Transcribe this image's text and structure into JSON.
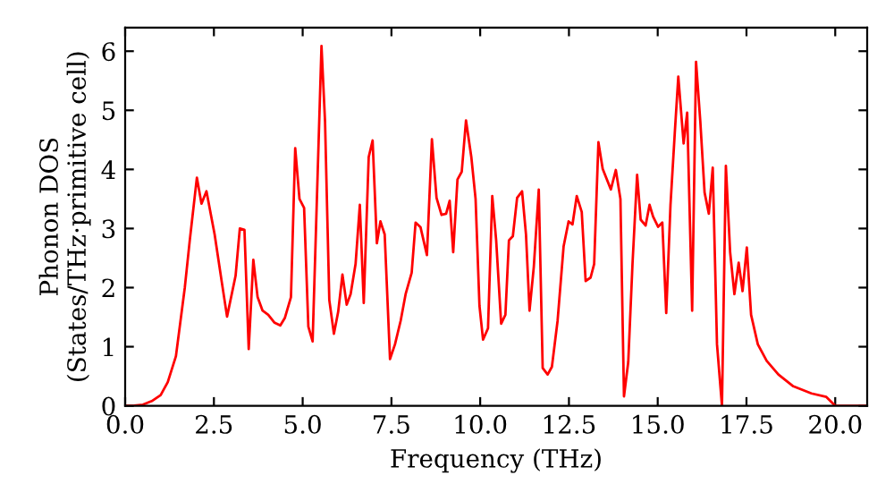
{
  "chart_data": {
    "type": "line",
    "xlabel": "Frequency (THz)",
    "ylabel": "Phonon DOS\n(States/THz·primitive cell)",
    "xlim": [
      0,
      20.9
    ],
    "ylim": [
      0,
      6.4
    ],
    "xticks": [
      {
        "value": 0,
        "label": "0.0"
      },
      2.5,
      {
        "value": 5,
        "label": "5.0"
      },
      7.5,
      {
        "value": 10,
        "label": "10.0"
      },
      12.5,
      {
        "value": 15,
        "label": "15.0"
      },
      17.5,
      {
        "value": 20,
        "label": "20.0"
      }
    ],
    "yticks": [
      0,
      1,
      2,
      3,
      4,
      5,
      6
    ],
    "grid": false,
    "marker": "none",
    "line_style": "solid",
    "series": [
      {
        "color": "#ff0000",
        "x": [
          0,
          0.25,
          0.5,
          0.75,
          1.0,
          1.2,
          1.43,
          1.68,
          1.82,
          2.02,
          2.15,
          2.29,
          2.52,
          2.72,
          2.87,
          3.11,
          3.23,
          3.36,
          3.48,
          3.61,
          3.73,
          3.87,
          4.03,
          4.2,
          4.37,
          4.5,
          4.67,
          4.79,
          4.91,
          5.04,
          5.16,
          5.28,
          5.53,
          5.63,
          5.75,
          5.88,
          6.0,
          6.12,
          6.24,
          6.35,
          6.49,
          6.61,
          6.72,
          6.86,
          6.97,
          7.09,
          7.19,
          7.31,
          7.46,
          7.6,
          7.76,
          7.9,
          8.07,
          8.18,
          8.32,
          8.5,
          8.64,
          8.77,
          8.91,
          9.04,
          9.14,
          9.24,
          9.36,
          9.48,
          9.6,
          9.75,
          9.87,
          9.98,
          10.08,
          10.22,
          10.34,
          10.45,
          10.59,
          10.71,
          10.81,
          10.92,
          11.04,
          11.18,
          11.29,
          11.39,
          11.51,
          11.65,
          11.76,
          11.9,
          12.02,
          12.18,
          12.35,
          12.49,
          12.6,
          12.72,
          12.86,
          12.97,
          13.11,
          13.21,
          13.33,
          13.45,
          13.68,
          13.82,
          13.95,
          14.05,
          14.17,
          14.29,
          14.42,
          14.52,
          14.66,
          14.77,
          14.87,
          15.01,
          15.13,
          15.24,
          15.36,
          15.48,
          15.58,
          15.73,
          15.83,
          15.97,
          16.08,
          16.2,
          16.32,
          16.44,
          16.55,
          16.67,
          16.81,
          16.92,
          17.04,
          17.16,
          17.28,
          17.39,
          17.51,
          17.63,
          17.82,
          18.07,
          18.4,
          18.82,
          19.33,
          19.75,
          20.0,
          20.9
        ],
        "values": [
          0,
          0.005,
          0.02,
          0.08,
          0.18,
          0.4,
          0.84,
          2.0,
          2.8,
          3.86,
          3.42,
          3.63,
          2.9,
          2.1,
          1.51,
          2.2,
          3.0,
          2.98,
          0.96,
          2.47,
          1.84,
          1.61,
          1.54,
          1.41,
          1.36,
          1.49,
          1.84,
          4.36,
          3.5,
          3.35,
          1.34,
          1.09,
          6.09,
          4.81,
          1.79,
          1.22,
          1.59,
          2.22,
          1.71,
          1.89,
          2.4,
          3.4,
          1.74,
          4.21,
          4.49,
          2.75,
          3.12,
          2.9,
          0.79,
          1.04,
          1.44,
          1.89,
          2.25,
          3.1,
          3.02,
          2.55,
          4.51,
          3.52,
          3.23,
          3.25,
          3.47,
          2.6,
          3.83,
          3.96,
          4.83,
          4.21,
          3.5,
          1.69,
          1.12,
          1.31,
          3.55,
          2.8,
          1.39,
          1.54,
          2.8,
          2.87,
          3.52,
          3.63,
          2.9,
          1.61,
          2.35,
          3.66,
          0.64,
          0.53,
          0.66,
          1.44,
          2.7,
          3.12,
          3.07,
          3.55,
          3.28,
          2.11,
          2.17,
          2.4,
          4.46,
          4.01,
          3.66,
          3.99,
          3.5,
          0.16,
          0.74,
          2.4,
          3.91,
          3.15,
          3.05,
          3.4,
          3.2,
          3.03,
          3.1,
          1.57,
          3.4,
          4.61,
          5.57,
          4.44,
          4.96,
          1.61,
          5.82,
          4.81,
          3.61,
          3.25,
          4.03,
          1.04,
          0,
          4.06,
          2.6,
          1.89,
          2.42,
          1.94,
          2.68,
          1.54,
          1.04,
          0.76,
          0.53,
          0.33,
          0.21,
          0.15,
          0,
          0
        ]
      }
    ]
  }
}
